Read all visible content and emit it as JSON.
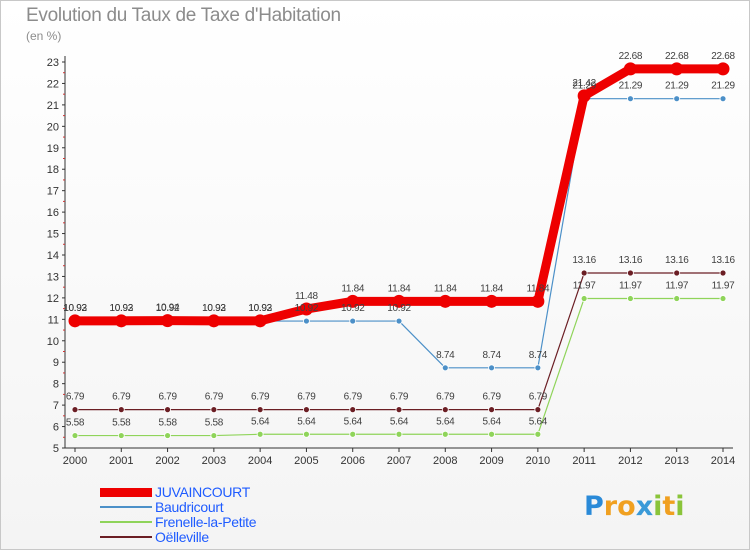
{
  "chart_data": {
    "type": "line",
    "title": "Evolution du Taux de Taxe d'Habitation",
    "subtitle": "(en %)",
    "xlabel": "",
    "ylabel": "",
    "x": [
      2000,
      2001,
      2002,
      2003,
      2004,
      2005,
      2006,
      2007,
      2008,
      2009,
      2010,
      2011,
      2012,
      2013,
      2014
    ],
    "ylim": [
      5,
      23
    ],
    "yticks": [
      5,
      6,
      7,
      8,
      9,
      10,
      11,
      12,
      13,
      14,
      15,
      16,
      17,
      18,
      19,
      20,
      21,
      22,
      23
    ],
    "grid": false,
    "legend_position": "bottom-left",
    "series": [
      {
        "name": "JUVAINCOURT",
        "color": "#ee0000",
        "values": [
          10.93,
          10.93,
          10.94,
          10.93,
          10.93,
          11.48,
          11.84,
          11.84,
          11.84,
          11.84,
          11.84,
          21.42,
          22.68,
          22.68,
          22.68
        ],
        "labels": [
          "10.93",
          "10.93",
          "10.94",
          "10.93",
          "10.93",
          "11.48",
          "11.84",
          "11.84",
          "11.84",
          "11.84",
          "11.84",
          "21.42",
          "22.68",
          "22.68",
          "22.68"
        ]
      },
      {
        "name": "Baudricourt",
        "color": "#4c90c8",
        "values": [
          10.92,
          10.92,
          10.92,
          10.92,
          10.92,
          10.92,
          10.92,
          10.92,
          8.74,
          8.74,
          8.74,
          21.29,
          21.29,
          21.29,
          21.29
        ],
        "labels": [
          "10.92",
          "10.92",
          "10.92",
          "10.92",
          "10.92",
          "10.92",
          "10.92",
          "10.92",
          "8.74",
          "8.74",
          "8.74",
          "21.29",
          "21.29",
          "21.29",
          "21.29"
        ]
      },
      {
        "name": "Frenelle-la-Petite",
        "color": "#8fd45a",
        "values": [
          5.58,
          5.58,
          5.58,
          5.58,
          5.64,
          5.64,
          5.64,
          5.64,
          5.64,
          5.64,
          5.64,
          11.97,
          11.97,
          11.97,
          11.97
        ],
        "labels": [
          "5.58",
          "5.58",
          "5.58",
          "5.58",
          "5.64",
          "5.64",
          "5.64",
          "5.64",
          "5.64",
          "5.64",
          "5.64",
          "11.97",
          "11.97",
          "11.97",
          "11.97"
        ]
      },
      {
        "name": "Oëlleville",
        "color": "#6b1e24",
        "values": [
          6.79,
          6.79,
          6.79,
          6.79,
          6.79,
          6.79,
          6.79,
          6.79,
          6.79,
          6.79,
          6.79,
          13.16,
          13.16,
          13.16,
          13.16
        ],
        "labels": [
          "6.79",
          "6.79",
          "6.79",
          "6.79",
          "6.79",
          "6.79",
          "6.79",
          "6.79",
          "6.79",
          "6.79",
          "6.79",
          "13.16",
          "13.16",
          "13.16",
          "13.16"
        ]
      }
    ]
  },
  "logo": {
    "letters": [
      "P",
      "r",
      "o",
      "x",
      "i",
      "t",
      "i"
    ],
    "colors": [
      "#2a8ad8",
      "#f0a020",
      "#f0a020",
      "#3a9ad8",
      "#8ac43a",
      "#f0a020",
      "#8ac43a"
    ]
  }
}
